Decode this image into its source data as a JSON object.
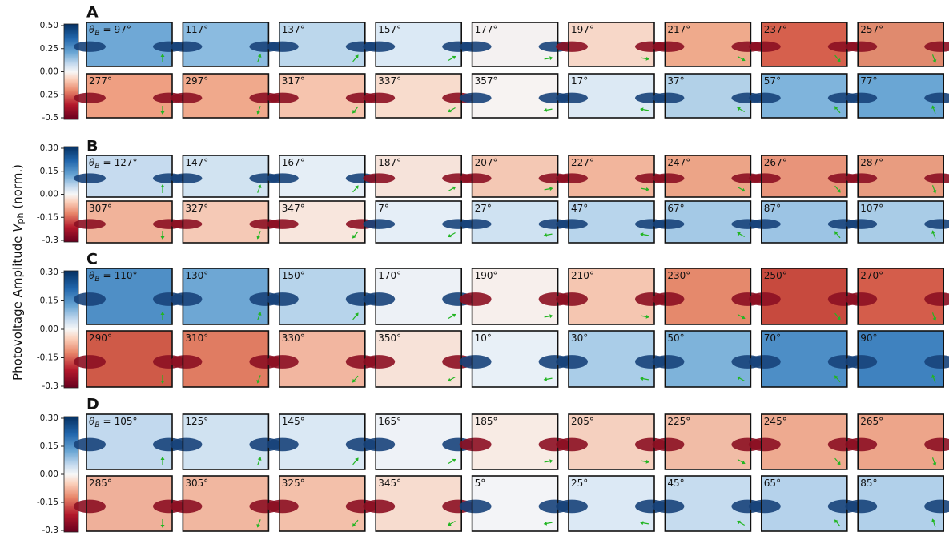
{
  "y_label": {
    "text": "Photovoltage Amplitude",
    "var": "V",
    "sub": "ph",
    "tail": "(norm.)"
  },
  "panels": [
    {
      "letter": "A",
      "symbol": "θ",
      "subscript": "B",
      "equals": "=",
      "colorbar": {
        "ylim": [
          -0.5,
          0.5
        ],
        "yticks": [
          {
            "value": 0.5,
            "label": "0.50"
          },
          0.25,
          {
            "value": 0,
            "label": "0.00"
          },
          -0.25,
          -0.5
        ]
      },
      "labels": [
        "97°",
        "117°",
        "137°",
        "157°",
        "177°",
        "197°",
        "217°",
        "237°",
        "257°",
        "277°",
        "297°",
        "317°",
        "337°",
        "357°",
        "17°",
        "37°",
        "57°",
        "77°"
      ],
      "fills": [
        "#6fa8d6",
        "#8bbbe0",
        "#bcd7ec",
        "#dbe9f5",
        "#f4f1f1",
        "#f7d7c8",
        "#efaa8c",
        "#d6604d",
        "#e08a6e",
        "#ef9f82",
        "#f0a98c",
        "#f6c4ae",
        "#f8dccd",
        "#f7f3f2",
        "#dce9f4",
        "#b2d1e8",
        "#7fb4dc",
        "#6aa6d4"
      ],
      "lead_colors": [
        "#17437a",
        "#17437a",
        "#17437a",
        "#17437a",
        "#17437a",
        "#8c1022",
        "#8c1022",
        "#8c1022",
        "#8c1022",
        "#8c1022",
        "#8c1022",
        "#8c1022",
        "#8c1022",
        "#17437a",
        "#17437a",
        "#17437a",
        "#17437a",
        "#17437a"
      ]
    },
    {
      "letter": "B",
      "symbol": "θ",
      "subscript": "B",
      "equals": "=",
      "colorbar": {
        "ylim": [
          -0.3,
          0.3
        ],
        "yticks": [
          {
            "value": 0.3,
            "label": "0.30"
          },
          0.15,
          {
            "value": 0,
            "label": "0.00"
          },
          -0.15,
          -0.3
        ]
      },
      "labels": [
        "127°",
        "147°",
        "167°",
        "187°",
        "207°",
        "227°",
        "247°",
        "267°",
        "287°",
        "307°",
        "327°",
        "347°",
        "7°",
        "27°",
        "47°",
        "67°",
        "87°",
        "107°"
      ],
      "fills": [
        "#c6dbef",
        "#d1e3f1",
        "#e5eef6",
        "#f6e3da",
        "#f4c8b4",
        "#f2b59c",
        "#eca487",
        "#e8947a",
        "#e89c80",
        "#f1b39a",
        "#f5c9b6",
        "#f8e6dd",
        "#e5eef7",
        "#cfe2f2",
        "#b8d5ec",
        "#a4c9e6",
        "#9cc4e4",
        "#a9cce7"
      ],
      "lead_colors": [
        "#17437a",
        "#17437a",
        "#17437a",
        "#8c1022",
        "#8c1022",
        "#8c1022",
        "#8c1022",
        "#8c1022",
        "#8c1022",
        "#8c1022",
        "#8c1022",
        "#8c1022",
        "#17437a",
        "#17437a",
        "#17437a",
        "#17437a",
        "#17437a",
        "#17437a"
      ]
    },
    {
      "letter": "C",
      "symbol": "θ",
      "subscript": "B",
      "equals": "=",
      "colorbar": {
        "ylim": [
          -0.3,
          0.3
        ],
        "yticks": [
          {
            "value": 0.3,
            "label": "0.30"
          },
          0.15,
          {
            "value": 0,
            "label": "0.00"
          },
          -0.15,
          -0.3
        ]
      },
      "labels": [
        "110°",
        "130°",
        "150°",
        "170°",
        "190°",
        "210°",
        "230°",
        "250°",
        "270°",
        "290°",
        "310°",
        "330°",
        "350°",
        "10°",
        "30°",
        "50°",
        "70°",
        "90°"
      ],
      "fills": [
        "#4f8fc6",
        "#6ea7d4",
        "#b7d4eb",
        "#edf1f6",
        "#f7efec",
        "#f5c6b1",
        "#e5896c",
        "#c74a3e",
        "#d45d4b",
        "#cf5a48",
        "#e07c62",
        "#f2b6a0",
        "#f7e2d8",
        "#e8f0f7",
        "#aacde8",
        "#7eb3da",
        "#4d8ec6",
        "#3f82bf"
      ],
      "lead_colors": [
        "#17437a",
        "#17437a",
        "#17437a",
        "#17437a",
        "#8c1022",
        "#8c1022",
        "#8c1022",
        "#8c1022",
        "#8c1022",
        "#8c1022",
        "#8c1022",
        "#8c1022",
        "#8c1022",
        "#17437a",
        "#17437a",
        "#17437a",
        "#17437a",
        "#17437a"
      ]
    },
    {
      "letter": "D",
      "symbol": "θ",
      "subscript": "B",
      "equals": "=",
      "colorbar": {
        "ylim": [
          -0.3,
          0.3
        ],
        "yticks": [
          {
            "value": 0.3,
            "label": "0.30"
          },
          0.15,
          {
            "value": 0,
            "label": "0.00"
          },
          -0.15,
          -0.3
        ]
      },
      "labels": [
        "105°",
        "125°",
        "145°",
        "165°",
        "185°",
        "205°",
        "225°",
        "245°",
        "265°",
        "285°",
        "305°",
        "325°",
        "345°",
        "5°",
        "25°",
        "45°",
        "65°",
        "85°"
      ],
      "fills": [
        "#c2d9ee",
        "#d0e2f1",
        "#dae8f4",
        "#eef2f7",
        "#f8ebe4",
        "#f5d0bf",
        "#f1bca6",
        "#eeaa90",
        "#eda58a",
        "#efb09a",
        "#f1b7a0",
        "#f3c0aa",
        "#f7dccf",
        "#f3f4f7",
        "#dce9f5",
        "#c6dcef",
        "#b5d2eb",
        "#b1d0ea"
      ],
      "lead_colors": [
        "#17437a",
        "#17437a",
        "#17437a",
        "#17437a",
        "#8c1022",
        "#8c1022",
        "#8c1022",
        "#8c1022",
        "#8c1022",
        "#8c1022",
        "#8c1022",
        "#8c1022",
        "#8c1022",
        "#17437a",
        "#17437a",
        "#17437a",
        "#17437a",
        "#17437a"
      ]
    }
  ]
}
